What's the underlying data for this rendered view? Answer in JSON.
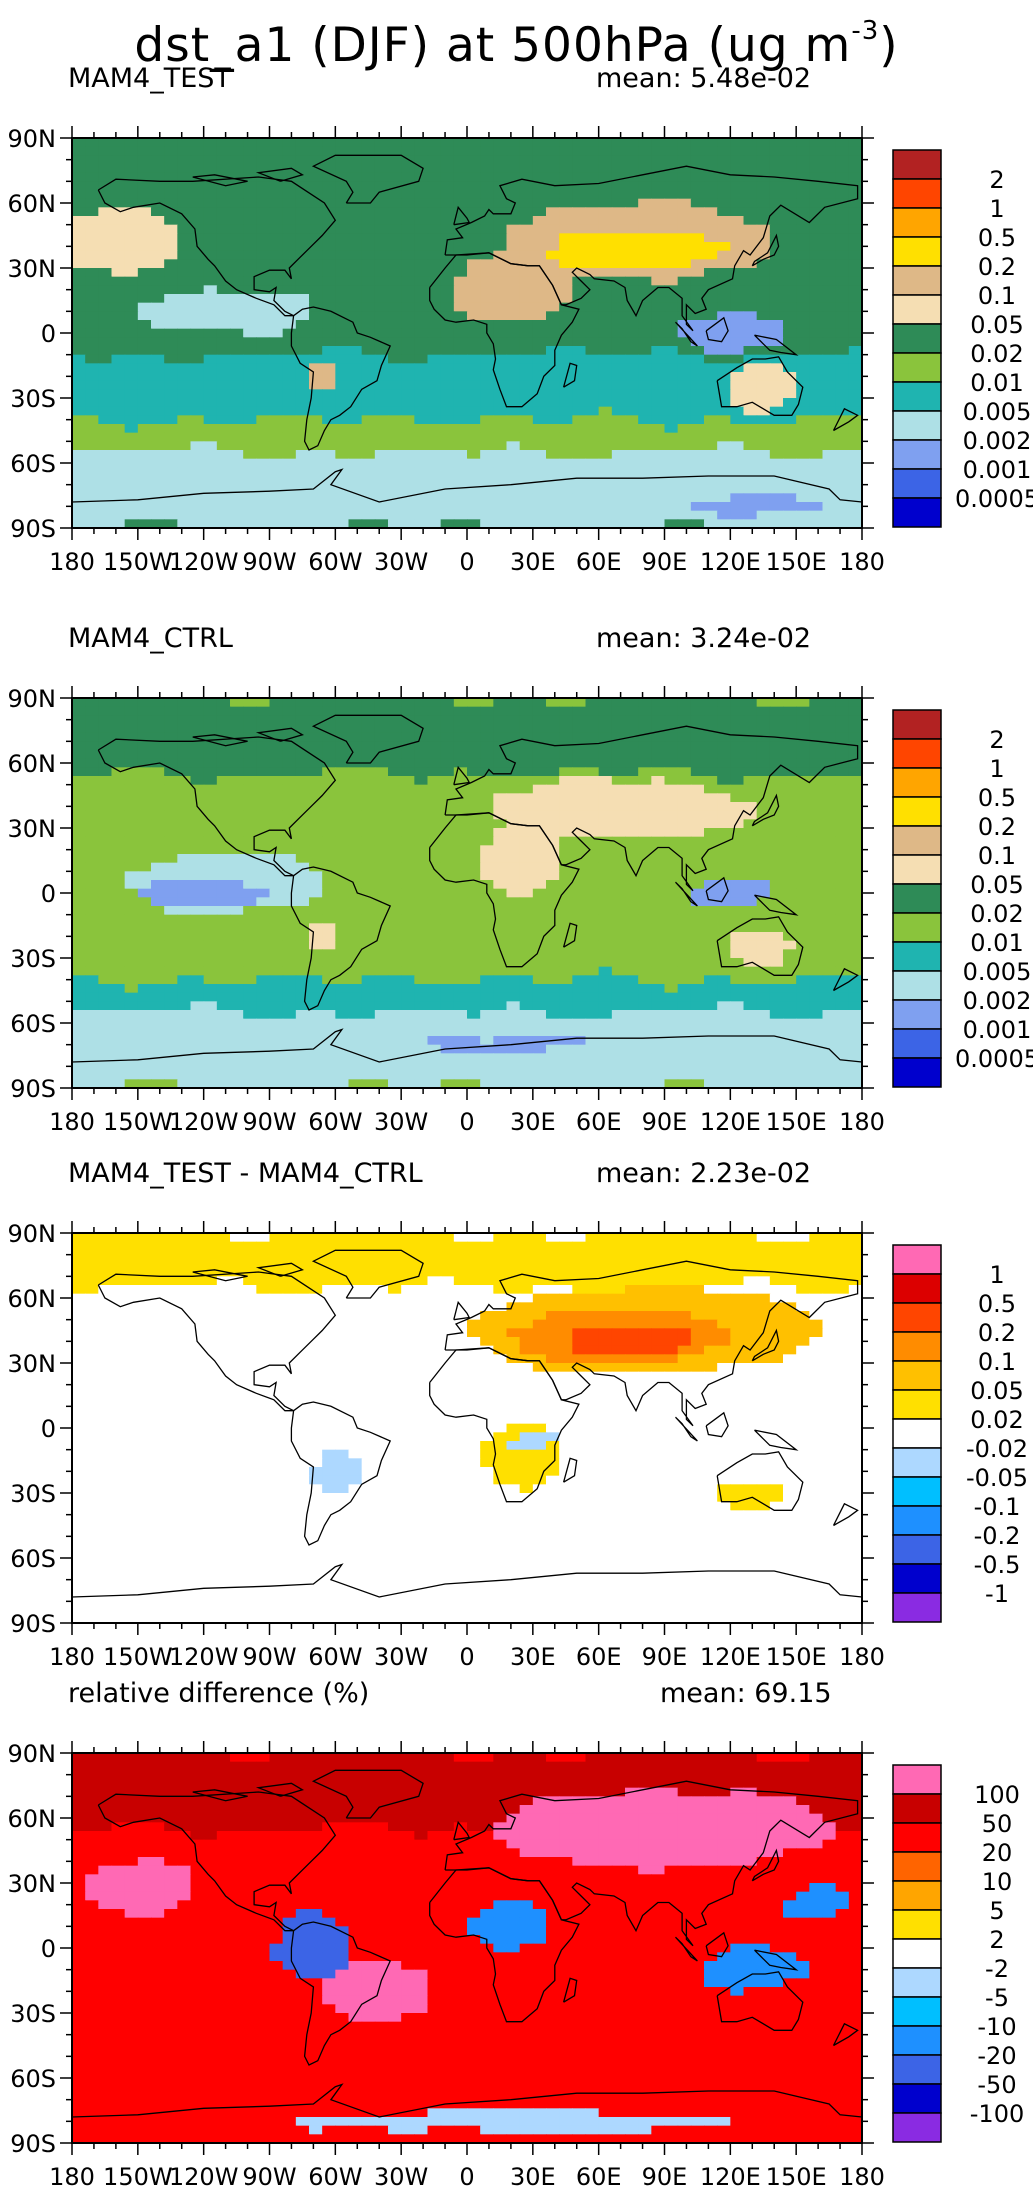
{
  "figure": {
    "title_main": "dst_a1 (DJF) at 500hPa (ug m",
    "title_sup": "-3",
    "title_close": ")"
  },
  "colors": {
    "abs_fill": [
      "#0000cd",
      "#3c64e6",
      "#7fa0f0",
      "#aee0e6",
      "#1fb4b0",
      "#8ac43c",
      "#2e8b57",
      "#f5deb3",
      "#deb887",
      "#ffe000",
      "#ffa500",
      "#ff4500",
      "#b22222"
    ],
    "diff_fill": [
      "#8a2be2",
      "#0000cd",
      "#3c64e6",
      "#1e90ff",
      "#00bfff",
      "#add8ff",
      "#ffffff",
      "#ffe000",
      "#ffc000",
      "#ff8c00",
      "#ff4500",
      "#dc0000",
      "#ff69b4"
    ],
    "rel_fill": [
      "#8a2be2",
      "#0000cd",
      "#3c64e6",
      "#1e90ff",
      "#00bfff",
      "#add8ff",
      "#ffffff",
      "#ffe000",
      "#ffa500",
      "#ff6400",
      "#ff0000",
      "#c80000",
      "#ff69b4"
    ]
  },
  "chart_data": [
    {
      "type": "heatmap",
      "panel_id": "test",
      "title": "MAM4_TEST",
      "mean_label": "mean: 5.48e-02",
      "mean_value": 0.0548,
      "xlim": [
        -180,
        180
      ],
      "ylim": [
        -90,
        90
      ],
      "x_ticks": [
        "180",
        "150W",
        "120W",
        "90W",
        "60W",
        "30W",
        "0",
        "30E",
        "60E",
        "90E",
        "120E",
        "150E",
        "180"
      ],
      "y_ticks": [
        "90N",
        "60N",
        "30N",
        "0",
        "30S",
        "60S",
        "90S"
      ],
      "colorbar": {
        "labels": [
          "2",
          "1",
          "0.5",
          "0.2",
          "0.1",
          "0.05",
          "0.02",
          "0.01",
          "0.005",
          "0.002",
          "0.001",
          "0.0005"
        ],
        "palette": "abs_fill"
      },
      "field": {
        "base": 6,
        "regions": [
          {
            "kind": "band",
            "lat": [
              60,
              90
            ],
            "level": 6
          },
          {
            "kind": "band",
            "lat": [
              -90,
              -55
            ],
            "level": 3
          },
          {
            "kind": "band",
            "lat": [
              -55,
              -40
            ],
            "level": 5
          },
          {
            "kind": "band",
            "lat": [
              -40,
              -10
            ],
            "level": 4
          },
          {
            "kind": "blob",
            "lon": -160,
            "lat": 42,
            "rlon": 30,
            "rlat": 15,
            "level": 7
          },
          {
            "kind": "blob",
            "lon": 78,
            "lat": 42,
            "rlon": 62,
            "rlat": 18,
            "level": 8
          },
          {
            "kind": "blob",
            "lon": 78,
            "lat": 38,
            "rlon": 40,
            "rlat": 9,
            "level": 9
          },
          {
            "kind": "blob",
            "lon": 20,
            "lat": 20,
            "rlon": 28,
            "rlat": 15,
            "level": 8
          },
          {
            "kind": "blob",
            "lon": -66,
            "lat": -20,
            "rlon": 7,
            "rlat": 7,
            "level": 8
          },
          {
            "kind": "blob",
            "lon": 133,
            "lat": -25,
            "rlon": 16,
            "rlat": 10,
            "level": 7
          },
          {
            "kind": "blob",
            "lon": -110,
            "lat": 10,
            "rlon": 40,
            "rlat": 10,
            "level": 3
          },
          {
            "kind": "blob",
            "lon": 120,
            "lat": 0,
            "rlon": 25,
            "rlat": 8,
            "level": 2
          },
          {
            "kind": "blob",
            "lon": 130,
            "lat": -80,
            "rlon": 30,
            "rlat": 5,
            "level": 2
          }
        ]
      }
    },
    {
      "type": "heatmap",
      "panel_id": "ctrl",
      "title": "MAM4_CTRL",
      "mean_label": "mean: 3.24e-02",
      "mean_value": 0.0324,
      "xlim": [
        -180,
        180
      ],
      "ylim": [
        -90,
        90
      ],
      "x_ticks": [
        "180",
        "150W",
        "120W",
        "90W",
        "60W",
        "30W",
        "0",
        "30E",
        "60E",
        "90E",
        "120E",
        "150E",
        "180"
      ],
      "y_ticks": [
        "90N",
        "60N",
        "30N",
        "0",
        "30S",
        "60S",
        "90S"
      ],
      "colorbar": {
        "labels": [
          "2",
          "1",
          "0.5",
          "0.2",
          "0.1",
          "0.05",
          "0.02",
          "0.01",
          "0.005",
          "0.002",
          "0.001",
          "0.0005"
        ],
        "palette": "abs_fill"
      },
      "field": {
        "base": 5,
        "regions": [
          {
            "kind": "band",
            "lat": [
              55,
              90
            ],
            "level": 6
          },
          {
            "kind": "band",
            "lat": [
              -90,
              -55
            ],
            "level": 3
          },
          {
            "kind": "band",
            "lat": [
              -55,
              -40
            ],
            "level": 4
          },
          {
            "kind": "blob",
            "lon": -110,
            "lat": 5,
            "rlon": 45,
            "rlat": 14,
            "level": 3
          },
          {
            "kind": "blob",
            "lon": -120,
            "lat": 0,
            "rlon": 30,
            "rlat": 6,
            "level": 2
          },
          {
            "kind": "blob",
            "lon": 70,
            "lat": 38,
            "rlon": 60,
            "rlat": 14,
            "level": 7
          },
          {
            "kind": "blob",
            "lon": 25,
            "lat": 15,
            "rlon": 20,
            "rlat": 15,
            "level": 7
          },
          {
            "kind": "blob",
            "lon": -66,
            "lat": -20,
            "rlon": 7,
            "rlat": 7,
            "level": 7
          },
          {
            "kind": "blob",
            "lon": 133,
            "lat": -25,
            "rlon": 15,
            "rlat": 8,
            "level": 7
          },
          {
            "kind": "blob",
            "lon": 120,
            "lat": 0,
            "rlon": 20,
            "rlat": 6,
            "level": 2
          },
          {
            "kind": "blob",
            "lon": 20,
            "lat": -70,
            "rlon": 40,
            "rlat": 4,
            "level": 2
          }
        ]
      }
    },
    {
      "type": "heatmap",
      "panel_id": "diff",
      "title": "MAM4_TEST - MAM4_CTRL",
      "mean_label": "mean: 2.23e-02",
      "mean_value": 0.0223,
      "xlim": [
        -180,
        180
      ],
      "ylim": [
        -90,
        90
      ],
      "x_ticks": [
        "180",
        "150W",
        "120W",
        "90W",
        "60W",
        "30W",
        "0",
        "30E",
        "60E",
        "90E",
        "120E",
        "150E",
        "180"
      ],
      "y_ticks": [
        "90N",
        "60N",
        "30N",
        "0",
        "30S",
        "60S",
        "90S"
      ],
      "colorbar": {
        "labels": [
          "1",
          "0.5",
          "0.2",
          "0.1",
          "0.05",
          "0.02",
          "-0.02",
          "-0.05",
          "-0.1",
          "-0.2",
          "-0.5",
          "-1"
        ],
        "palette": "diff_fill"
      },
      "field": {
        "base": 6,
        "regions": [
          {
            "kind": "band",
            "lat": [
              65,
              90
            ],
            "level": 7
          },
          {
            "kind": "blob",
            "lon": 80,
            "lat": 45,
            "rlon": 80,
            "rlat": 20,
            "level": 8
          },
          {
            "kind": "blob",
            "lon": 70,
            "lat": 42,
            "rlon": 50,
            "rlat": 12,
            "level": 9
          },
          {
            "kind": "blob",
            "lon": 75,
            "lat": 40,
            "rlon": 30,
            "rlat": 7,
            "level": 10
          },
          {
            "kind": "blob",
            "lon": 25,
            "lat": -12,
            "rlon": 20,
            "rlat": 15,
            "level": 7
          },
          {
            "kind": "blob",
            "lon": -60,
            "lat": -20,
            "rlon": 10,
            "rlat": 10,
            "level": 5
          },
          {
            "kind": "blob",
            "lon": 130,
            "lat": -30,
            "rlon": 15,
            "rlat": 6,
            "level": 7
          },
          {
            "kind": "blob",
            "lon": 30,
            "lat": -5,
            "rlon": 10,
            "rlat": 5,
            "level": 5
          }
        ]
      }
    },
    {
      "type": "heatmap",
      "panel_id": "rel",
      "title": "relative difference (%)",
      "mean_label": "mean: 69.15",
      "mean_value": 69.15,
      "xlim": [
        -180,
        180
      ],
      "ylim": [
        -90,
        90
      ],
      "x_ticks": [
        "180",
        "150W",
        "120W",
        "90W",
        "60W",
        "30W",
        "0",
        "30E",
        "60E",
        "90E",
        "120E",
        "150E",
        "180"
      ],
      "y_ticks": [
        "90N",
        "60N",
        "30N",
        "0",
        "30S",
        "60S",
        "90S"
      ],
      "colorbar": {
        "labels": [
          "100",
          "50",
          "20",
          "10",
          "5",
          "2",
          "-2",
          "-5",
          "-10",
          "-20",
          "-50",
          "-100"
        ],
        "palette": "rel_fill"
      },
      "field": {
        "base": 10,
        "regions": [
          {
            "kind": "band",
            "lat": [
              55,
              90
            ],
            "level": 11
          },
          {
            "kind": "blob",
            "lon": 90,
            "lat": 55,
            "rlon": 80,
            "rlat": 18,
            "level": 12
          },
          {
            "kind": "blob",
            "lon": -150,
            "lat": 28,
            "rlon": 25,
            "rlat": 12,
            "level": 12
          },
          {
            "kind": "blob",
            "lon": -40,
            "lat": -20,
            "rlon": 25,
            "rlat": 15,
            "level": 12
          },
          {
            "kind": "blob",
            "lon": -70,
            "lat": 0,
            "rlon": 18,
            "rlat": 15,
            "level": 2
          },
          {
            "kind": "blob",
            "lon": 20,
            "lat": 10,
            "rlon": 18,
            "rlat": 10,
            "level": 3
          },
          {
            "kind": "blob",
            "lon": 130,
            "lat": -10,
            "rlon": 25,
            "rlat": 10,
            "level": 3
          },
          {
            "kind": "blob",
            "lon": 160,
            "lat": 20,
            "rlon": 15,
            "rlat": 8,
            "level": 3
          },
          {
            "kind": "blob",
            "lon": 20,
            "lat": -80,
            "rlon": 100,
            "rlat": 5,
            "level": 5
          }
        ]
      }
    }
  ]
}
